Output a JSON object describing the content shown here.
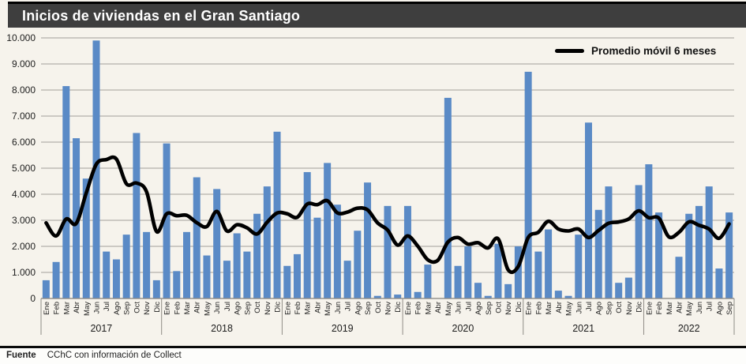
{
  "header": {
    "title": "Inicios de viviendas en el Gran Santiago"
  },
  "legend": {
    "label": "Promedio móvil 6 meses"
  },
  "footer": {
    "source_label": "Fuente",
    "source_text": "CChC con información de Collect"
  },
  "colors": {
    "bar": "#5A8AC6",
    "line": "#000000",
    "header_bg": "#3E3E3E",
    "grid": "#B3B0AA",
    "background": "#F6F3EC"
  },
  "chart_data": {
    "type": "bar",
    "title": "Inicios de viviendas en el Gran Santiago",
    "xlabel": "",
    "ylabel": "",
    "ylim": [
      0,
      10000
    ],
    "y_tick_step": 1000,
    "grid": true,
    "legend_position": "top-right",
    "y_ticks": [
      "10.000",
      "9.000",
      "8.000",
      "7.000",
      "6.000",
      "5.000",
      "4.000",
      "3.000",
      "2.000",
      "1.000",
      "0"
    ],
    "months": [
      "Ene",
      "Feb",
      "Mar",
      "Abr",
      "May",
      "Jun",
      "Jul",
      "Ago",
      "Sep",
      "Oct",
      "Nov",
      "Dic",
      "Ene",
      "Feb",
      "Mar",
      "Abr",
      "May",
      "Jun",
      "Jul",
      "Ago",
      "Sep",
      "Oct",
      "Nov",
      "Dic",
      "Ene",
      "Feb",
      "Mar",
      "Abr",
      "May",
      "Jun",
      "Jul",
      "Ago",
      "Sep",
      "Oct",
      "Nov",
      "Dic",
      "Ene",
      "Feb",
      "Mar",
      "Abr",
      "May",
      "Jun",
      "Jul",
      "Ago",
      "Sep",
      "Oct",
      "Nov",
      "Dic",
      "Ene",
      "Feb",
      "Mar",
      "Abr",
      "May",
      "Jun",
      "Jul",
      "Ago",
      "Sep",
      "Oct",
      "Nov",
      "Dic",
      "Ene",
      "Feb",
      "Mar",
      "Abr",
      "May",
      "Jun",
      "Jul",
      "Ago",
      "Sep"
    ],
    "year_groups": [
      {
        "label": "2017",
        "months": 12
      },
      {
        "label": "2018",
        "months": 12
      },
      {
        "label": "2019",
        "months": 12
      },
      {
        "label": "2020",
        "months": 12
      },
      {
        "label": "2021",
        "months": 12
      },
      {
        "label": "2022",
        "months": 9
      }
    ],
    "series": [
      {
        "name": "Inicios de viviendas",
        "type": "bar",
        "color": "#5A8AC6",
        "values": [
          700,
          1400,
          8150,
          6150,
          4600,
          9900,
          1800,
          1500,
          2450,
          6350,
          2550,
          700,
          5950,
          1050,
          2550,
          4650,
          1650,
          4200,
          1450,
          2500,
          1800,
          3250,
          4300,
          6400,
          1250,
          1700,
          4850,
          3100,
          5200,
          3600,
          1450,
          2600,
          4450,
          100,
          3550,
          150,
          3550,
          250,
          1300,
          0,
          7700,
          1250,
          2000,
          600,
          100,
          2100,
          550,
          2000,
          8700,
          1800,
          2650,
          300,
          100,
          2450,
          6750,
          3400,
          4300,
          600,
          800,
          4350,
          5150,
          3300,
          0,
          1600,
          3250,
          3550,
          4300,
          1150,
          3300
        ]
      },
      {
        "name": "Promedio móvil 6 meses",
        "type": "line",
        "color": "#000000",
        "values": [
          2900,
          2400,
          3050,
          2880,
          4050,
          5150,
          5330,
          5350,
          4400,
          4430,
          4100,
          2570,
          3250,
          3175,
          3190,
          2910,
          2760,
          3340,
          2590,
          2830,
          2710,
          2475,
          2920,
          3280,
          3250,
          3115,
          3625,
          3600,
          3750,
          3285,
          3315,
          3465,
          3400,
          2900,
          2625,
          2050,
          2400,
          2010,
          1485,
          1465,
          2160,
          2340,
          2085,
          2140,
          1940,
          2290,
          1100,
          1225,
          2340,
          2540,
          2965,
          2665,
          2590,
          2665,
          2340,
          2610,
          2885,
          2935,
          3050,
          3365,
          3100,
          3085,
          2365,
          2535,
          2940,
          2810,
          2665,
          2310,
          2860
        ]
      }
    ]
  }
}
